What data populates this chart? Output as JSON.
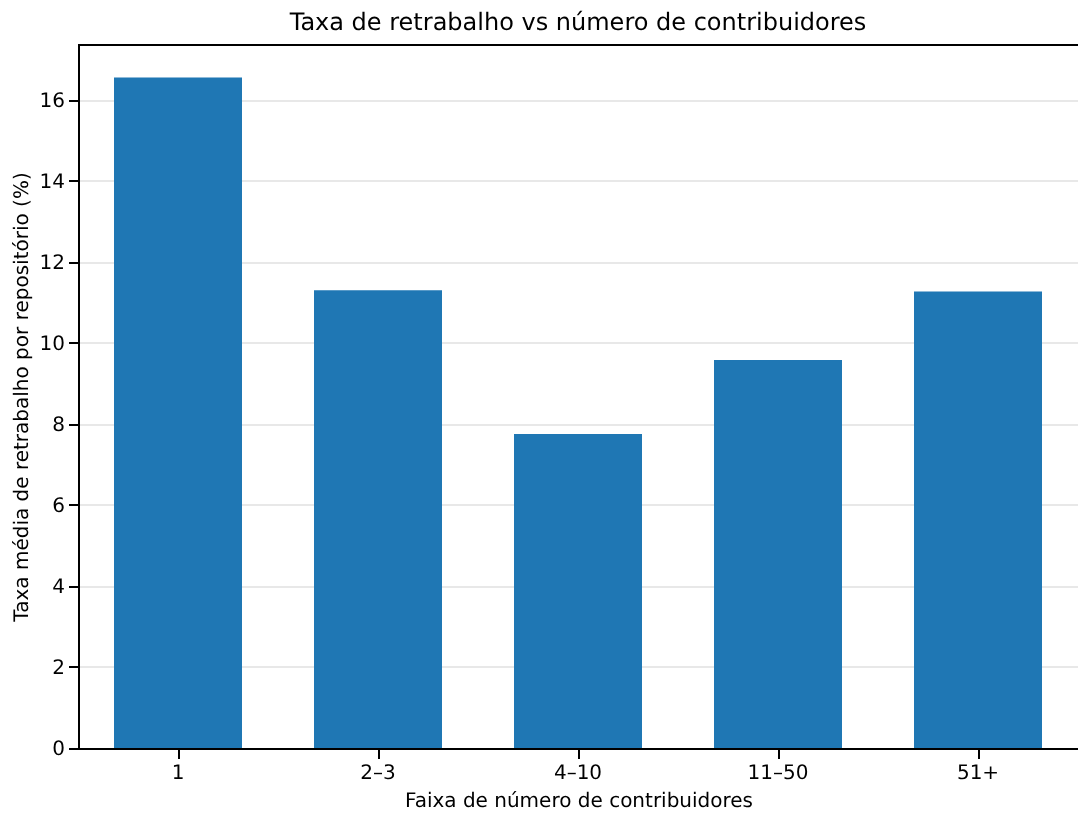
{
  "chart_data": {
    "type": "bar",
    "title": "Taxa de retrabalho vs número de contribuidores",
    "xlabel": "Faixa de número de contribuidores",
    "ylabel": "Taxa média de retrabalho por repositório (%)",
    "categories": [
      "1",
      "2–3",
      "4–10",
      "11–50",
      "51+"
    ],
    "values": [
      16.55,
      11.3,
      7.75,
      9.58,
      11.27
    ],
    "color": "#1f77b4",
    "ylim": [
      0,
      17.38
    ],
    "yticks": [
      0,
      2,
      4,
      6,
      8,
      10,
      12,
      14,
      16
    ],
    "grid": "y"
  }
}
